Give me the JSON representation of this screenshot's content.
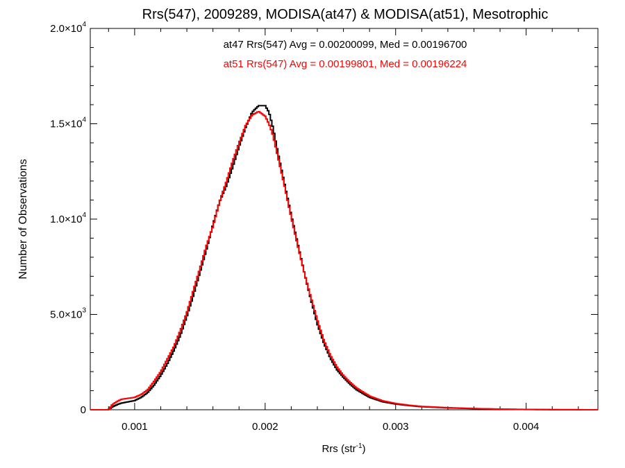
{
  "chart_data": {
    "type": "line",
    "title": "Rrs(547), 2009289, MODISA(at47) & MODISA(at51), Mesotrophic",
    "xlabel": "Rrs (str",
    "xlabel_sup": "-1",
    "xlabel_close": ")",
    "ylabel": "Number of Observations",
    "xlim": [
      0.00066,
      0.00455
    ],
    "ylim": [
      0,
      20000
    ],
    "grid": false,
    "x_ticks": [
      {
        "value": 0.001,
        "label": "0.001"
      },
      {
        "value": 0.002,
        "label": "0.002"
      },
      {
        "value": 0.003,
        "label": "0.003"
      },
      {
        "value": 0.004,
        "label": "0.004"
      }
    ],
    "y_ticks": [
      {
        "value": 0,
        "mantissa": "0",
        "exp": ""
      },
      {
        "value": 5000,
        "mantissa": "5.0×10",
        "exp": "3"
      },
      {
        "value": 10000,
        "mantissa": "1.0×10",
        "exp": "4"
      },
      {
        "value": 15000,
        "mantissa": "1.5×10",
        "exp": "4"
      },
      {
        "value": 20000,
        "mantissa": "2.0×10",
        "exp": "4"
      }
    ],
    "annotations": [
      {
        "text": "at47 Rrs(547) Avg = 0.00200099, Med = 0.00196700",
        "color": "#000000"
      },
      {
        "text": "at51 Rrs(547) Avg = 0.00199801, Med = 0.00196224",
        "color": "#ff0000"
      }
    ],
    "series": [
      {
        "color": "#000000",
        "x": [
          0.00066,
          0.0008,
          0.00083,
          0.00087,
          0.0009,
          0.001,
          0.00105,
          0.0011,
          0.00115,
          0.0012,
          0.00125,
          0.0013,
          0.00135,
          0.0014,
          0.00145,
          0.0015,
          0.00155,
          0.0016,
          0.00165,
          0.0017,
          0.00175,
          0.0018,
          0.00185,
          0.0019,
          0.00195,
          0.002,
          0.00203,
          0.00206,
          0.0021,
          0.00215,
          0.0022,
          0.00225,
          0.0023,
          0.00235,
          0.0024,
          0.00245,
          0.0025,
          0.00255,
          0.0026,
          0.00265,
          0.0027,
          0.0028,
          0.0029,
          0.003,
          0.0031,
          0.0032,
          0.0034,
          0.0036,
          0.0038,
          0.004,
          0.0042,
          0.0044,
          0.00455
        ],
        "y": [
          0,
          0,
          150,
          280,
          350,
          480,
          650,
          900,
          1300,
          1800,
          2400,
          3100,
          3900,
          4900,
          6000,
          7200,
          8400,
          9700,
          10900,
          11700,
          12700,
          13800,
          14800,
          15600,
          15950,
          15950,
          15600,
          14800,
          13400,
          11800,
          10200,
          8700,
          7200,
          5800,
          4500,
          3500,
          2700,
          2100,
          1700,
          1350,
          1050,
          650,
          420,
          300,
          220,
          160,
          100,
          60,
          30,
          15,
          6,
          2,
          0
        ]
      },
      {
        "color": "#ff0000",
        "x": [
          0.00066,
          0.0008,
          0.00083,
          0.00087,
          0.0009,
          0.001,
          0.00105,
          0.0011,
          0.00115,
          0.0012,
          0.00125,
          0.0013,
          0.00135,
          0.0014,
          0.00145,
          0.0015,
          0.00155,
          0.0016,
          0.00165,
          0.0017,
          0.00175,
          0.0018,
          0.00185,
          0.0019,
          0.00195,
          0.002,
          0.00203,
          0.00206,
          0.0021,
          0.00215,
          0.0022,
          0.00225,
          0.0023,
          0.00235,
          0.0024,
          0.00245,
          0.0025,
          0.00255,
          0.0026,
          0.00265,
          0.0027,
          0.0028,
          0.0029,
          0.003,
          0.0031,
          0.0032,
          0.0034,
          0.0036,
          0.0038,
          0.004,
          0.0042,
          0.0044,
          0.00455
        ],
        "y": [
          0,
          0,
          280,
          450,
          550,
          650,
          800,
          1050,
          1500,
          2000,
          2650,
          3300,
          4150,
          5100,
          6250,
          7400,
          8600,
          9600,
          10900,
          11900,
          13000,
          14000,
          14900,
          15450,
          15650,
          15400,
          15000,
          14400,
          13200,
          11700,
          10100,
          8600,
          7200,
          5900,
          4700,
          3650,
          2850,
          2250,
          1800,
          1450,
          1150,
          720,
          470,
          330,
          240,
          175,
          110,
          65,
          35,
          18,
          8,
          3,
          0
        ]
      }
    ]
  }
}
